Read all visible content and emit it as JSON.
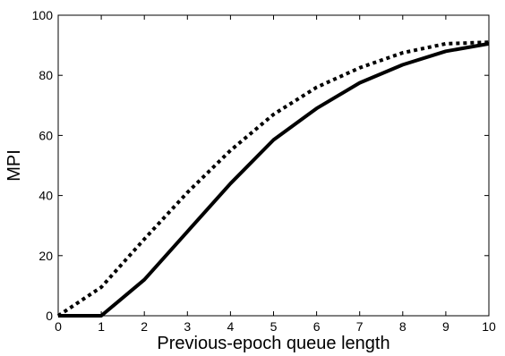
{
  "chart_data": {
    "type": "line",
    "xlabel": "Previous-epoch queue length",
    "ylabel": "MPI",
    "xlim": [
      0,
      10
    ],
    "ylim": [
      0,
      100
    ],
    "xticks": [
      0,
      1,
      2,
      3,
      4,
      5,
      6,
      7,
      8,
      9,
      10
    ],
    "yticks": [
      0,
      20,
      40,
      60,
      80,
      100
    ],
    "grid": false,
    "series": [
      {
        "style": "solid",
        "color": "#000000",
        "x": [
          0,
          1,
          2,
          3,
          4,
          5,
          6,
          7,
          8,
          9,
          10
        ],
        "y": [
          0,
          0,
          12,
          28,
          44,
          58.5,
          69,
          77.5,
          83.5,
          88,
          90.5
        ]
      },
      {
        "style": "dotted",
        "color": "#000000",
        "x": [
          0,
          1,
          2,
          3,
          4,
          5,
          6,
          7,
          8,
          9,
          10
        ],
        "y": [
          0,
          9.5,
          25.5,
          41,
          55,
          67,
          76,
          82.5,
          87.5,
          90.5,
          91
        ]
      }
    ]
  }
}
